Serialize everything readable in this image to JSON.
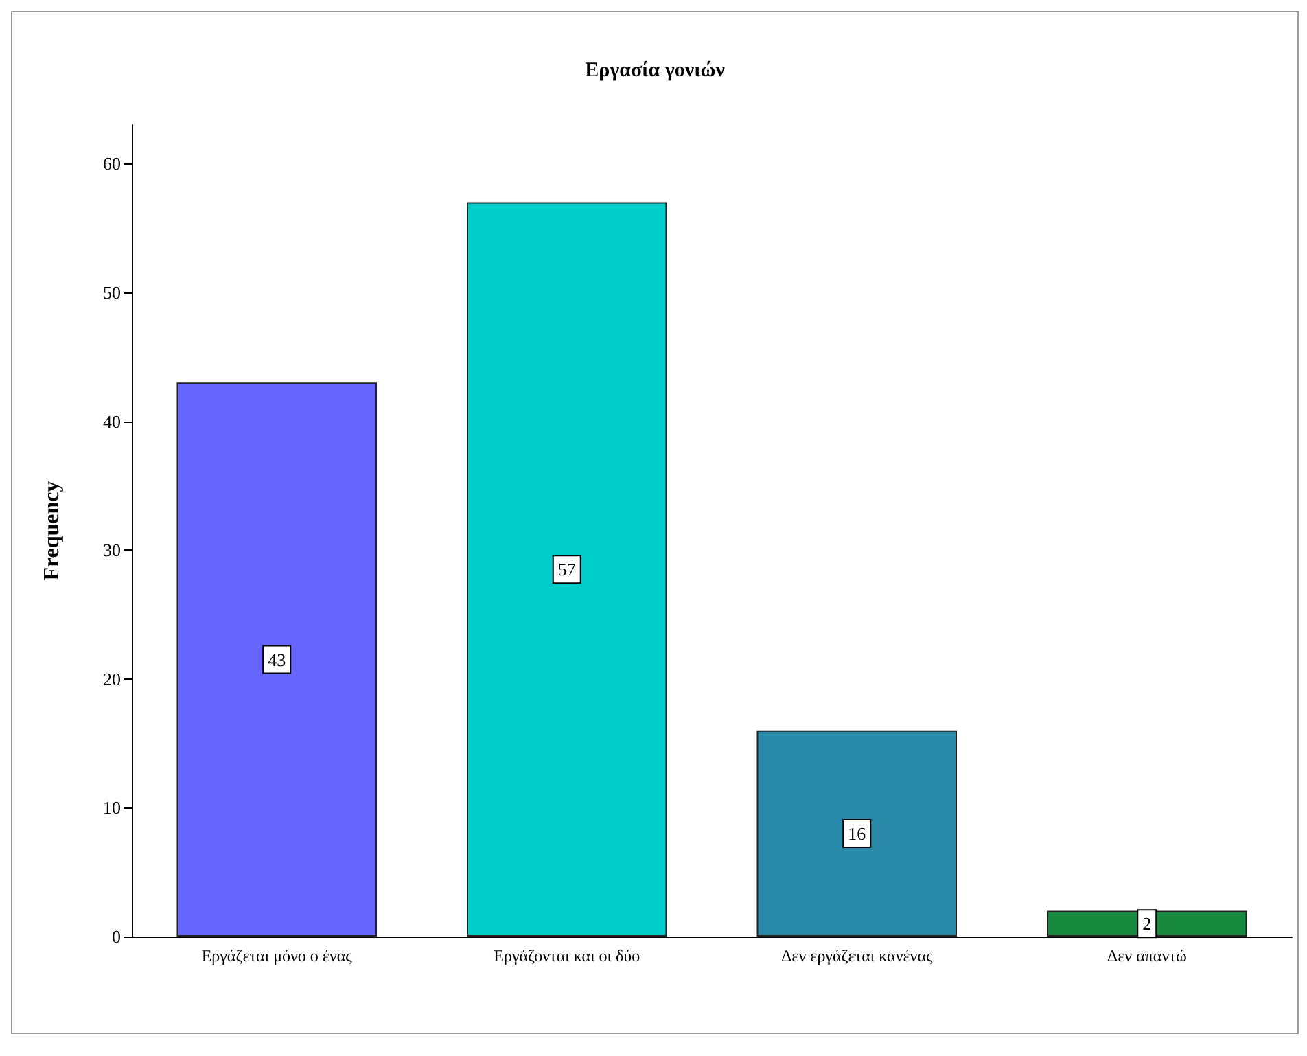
{
  "chart_data": {
    "type": "bar",
    "title": "Εργασία γονιών",
    "ylabel": "Frequency",
    "categories": [
      "Εργάζεται μόνο ο ένας",
      "Εργάζονται και οι δύο",
      "Δεν εργάζεται κανένας",
      "Δεν απαντώ"
    ],
    "values": [
      43,
      57,
      16,
      2
    ],
    "colors": [
      "#6666ff",
      "#00cccc",
      "#2a8aaa",
      "#178a40"
    ],
    "ylim": [
      0,
      63
    ],
    "yticks": [
      0,
      10,
      20,
      30,
      40,
      50,
      60
    ],
    "data_labels": true
  }
}
